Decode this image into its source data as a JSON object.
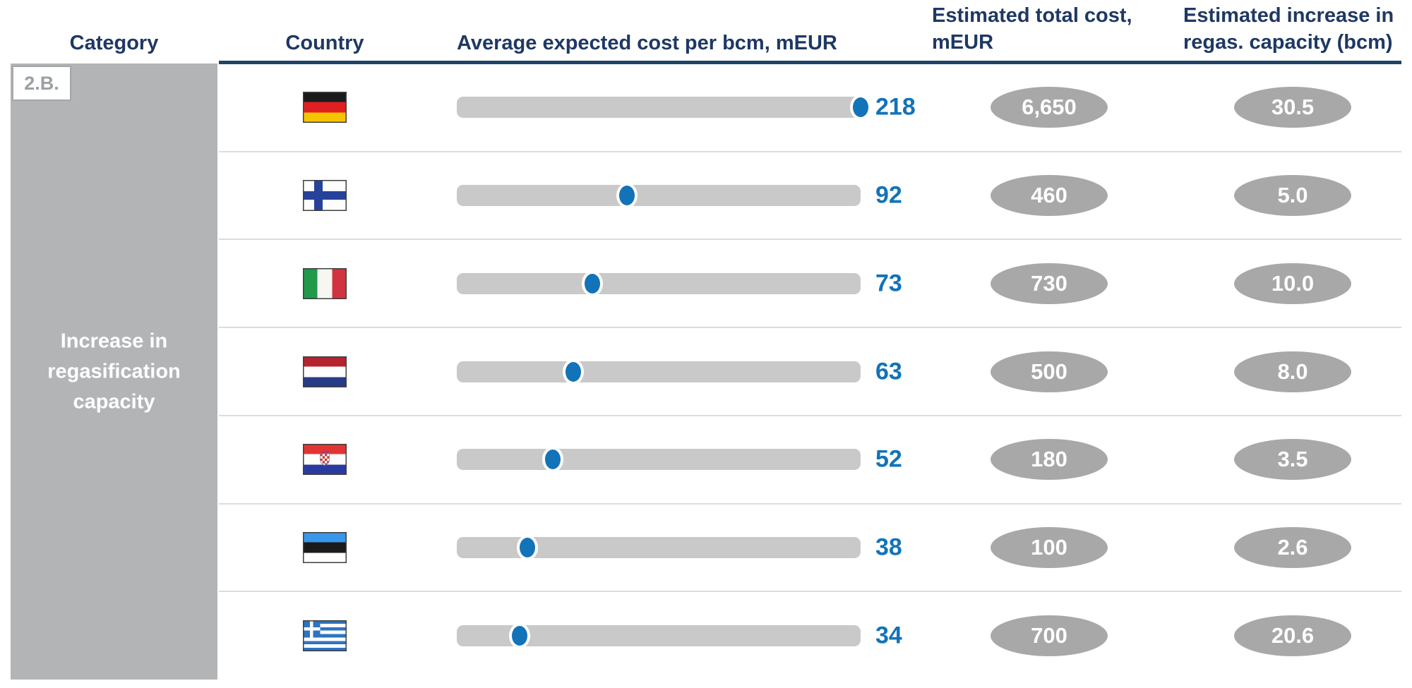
{
  "header": {
    "category": "Category",
    "country": "Country",
    "avg_cost": "Average expected cost per bcm, mEUR",
    "total_cost": "Estimated total cost, mEUR",
    "regas_capacity": "Estimated increase in regas. capacity (bcm)"
  },
  "category_block": {
    "badge": "2.B.",
    "label": "Increase in regasification capacity"
  },
  "colors": {
    "navy": "#1f3864",
    "underline": "#1f4468",
    "accent_blue": "#1273b9",
    "bar_gray": "#c9c9c9",
    "ellipse_gray": "#a8a8a8",
    "block_gray": "#b2b4b6"
  },
  "chart_data": {
    "type": "bar",
    "subtype": "dot-strip-table",
    "title": "",
    "columns": [
      "Category",
      "Country",
      "Average expected cost per bcm, mEUR",
      "Estimated total cost, mEUR",
      "Estimated increase in regas. capacity (bcm)"
    ],
    "category": "Increase in regasification capacity",
    "category_code": "2.B.",
    "scale": {
      "min": 0,
      "max": 218,
      "unit": "mEUR per bcm"
    },
    "rows": [
      {
        "country": "Germany",
        "code": "de",
        "avg_cost_per_bcm": 218,
        "avg_cost_label": "218",
        "total_cost_meur": "6,650",
        "capacity_increase_bcm": "30.5"
      },
      {
        "country": "Finland",
        "code": "fi",
        "avg_cost_per_bcm": 92,
        "avg_cost_label": "92",
        "total_cost_meur": "460",
        "capacity_increase_bcm": "5.0"
      },
      {
        "country": "Italy",
        "code": "it",
        "avg_cost_per_bcm": 73,
        "avg_cost_label": "73",
        "total_cost_meur": "730",
        "capacity_increase_bcm": "10.0"
      },
      {
        "country": "Netherlands",
        "code": "nl",
        "avg_cost_per_bcm": 63,
        "avg_cost_label": "63",
        "total_cost_meur": "500",
        "capacity_increase_bcm": "8.0"
      },
      {
        "country": "Croatia",
        "code": "hr",
        "avg_cost_per_bcm": 52,
        "avg_cost_label": "52",
        "total_cost_meur": "180",
        "capacity_increase_bcm": "3.5"
      },
      {
        "country": "Estonia",
        "code": "ee",
        "avg_cost_per_bcm": 38,
        "avg_cost_label": "38",
        "total_cost_meur": "100",
        "capacity_increase_bcm": "2.6"
      },
      {
        "country": "Greece",
        "code": "gr",
        "avg_cost_per_bcm": 34,
        "avg_cost_label": "34",
        "total_cost_meur": "700",
        "capacity_increase_bcm": "20.6"
      }
    ]
  }
}
